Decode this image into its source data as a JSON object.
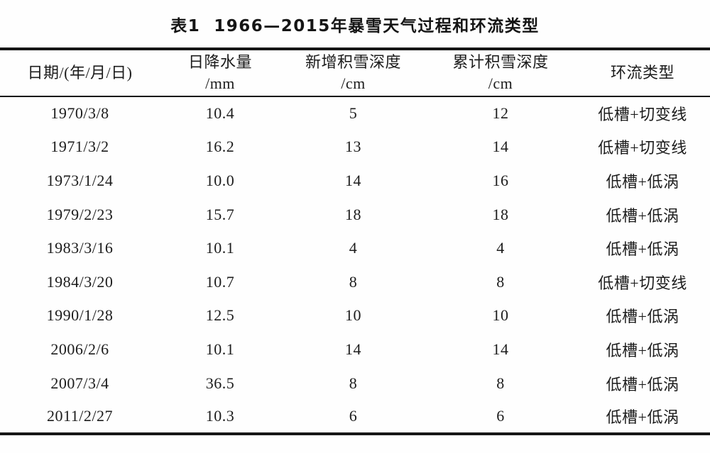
{
  "colors": {
    "text": "#1c1c1c",
    "rule": "#161616",
    "background": "#fefefe"
  },
  "table": {
    "title": "表1  1966—2015年暴雪天气过程和环流类型",
    "columns": [
      {
        "label": "日期/(年/月/日)",
        "unit": ""
      },
      {
        "label": "日降水量",
        "unit": "/mm"
      },
      {
        "label": "新增积雪深度",
        "unit": "/cm"
      },
      {
        "label": "累计积雪深度",
        "unit": "/cm"
      },
      {
        "label": "环流类型",
        "unit": ""
      }
    ],
    "rows": [
      [
        "1970/3/8",
        "10.4",
        "5",
        "12",
        "低槽+切变线"
      ],
      [
        "1971/3/2",
        "16.2",
        "13",
        "14",
        "低槽+切变线"
      ],
      [
        "1973/1/24",
        "10.0",
        "14",
        "16",
        "低槽+低涡"
      ],
      [
        "1979/2/23",
        "15.7",
        "18",
        "18",
        "低槽+低涡"
      ],
      [
        "1983/3/16",
        "10.1",
        "4",
        "4",
        "低槽+低涡"
      ],
      [
        "1984/3/20",
        "10.7",
        "8",
        "8",
        "低槽+切变线"
      ],
      [
        "1990/1/28",
        "12.5",
        "10",
        "10",
        "低槽+低涡"
      ],
      [
        "2006/2/6",
        "10.1",
        "14",
        "14",
        "低槽+低涡"
      ],
      [
        "2007/3/4",
        "36.5",
        "8",
        "8",
        "低槽+低涡"
      ],
      [
        "2011/2/27",
        "10.3",
        "6",
        "6",
        "低槽+低涡"
      ]
    ]
  }
}
